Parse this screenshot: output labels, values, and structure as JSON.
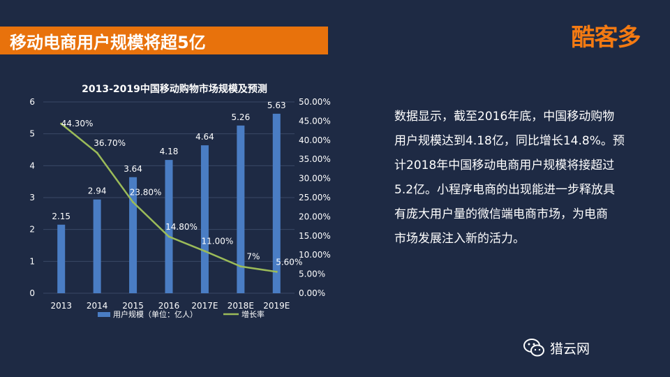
{
  "header": {
    "title": "移动电商用户规模将超5亿"
  },
  "brand": {
    "logo_text": "酷客多",
    "accent_color": "#e8720c"
  },
  "chart_data": {
    "type": "bar+line",
    "title": "2013-2019中国移动购物市场规模及预测",
    "categories": [
      "2013",
      "2014",
      "2015",
      "2016",
      "2017E",
      "2018E",
      "2019E"
    ],
    "series": [
      {
        "name": "用户规模（单位：亿人）",
        "type": "bar",
        "axis": "left",
        "values": [
          2.15,
          2.94,
          3.64,
          4.18,
          4.64,
          5.26,
          5.63
        ],
        "labels": [
          "2.15",
          "2.94",
          "3.64",
          "4.18",
          "4.64",
          "5.26",
          "5.63"
        ],
        "color": "#4a7dc4"
      },
      {
        "name": "增长率",
        "type": "line",
        "axis": "right",
        "values": [
          44.3,
          36.7,
          23.8,
          14.8,
          11.0,
          7.0,
          5.6
        ],
        "labels": [
          "44.30%",
          "36.70%",
          "23.80%",
          "14.80%",
          "11.00%",
          "7%",
          "5.60%"
        ],
        "color": "#9bbb59"
      }
    ],
    "ylim_left": [
      0,
      6
    ],
    "yticks_left": [
      "0",
      "1",
      "2",
      "3",
      "4",
      "5",
      "6"
    ],
    "ylim_right": [
      0,
      50
    ],
    "yticks_right": [
      "0.00%",
      "5.00%",
      "10.00%",
      "15.00%",
      "20.00%",
      "25.00%",
      "30.00%",
      "35.00%",
      "40.00%",
      "45.00%",
      "50.00%"
    ],
    "grid": true,
    "legend": "bottom"
  },
  "description": {
    "lines": [
      "数据显示，截至2016年底，中国移动购物",
      "用户规模达到4.18亿，同比增长14.8%。预",
      "计2018年中国移动电商用户规模将接超过",
      "5.2亿。小程序电商的出现能进一步释放具",
      "有庞大用户量的微信端电商市场，为电商",
      "市场发展注入新的活力。"
    ]
  },
  "watermark": {
    "text": "猎云网",
    "icon": "wechat-icon"
  }
}
